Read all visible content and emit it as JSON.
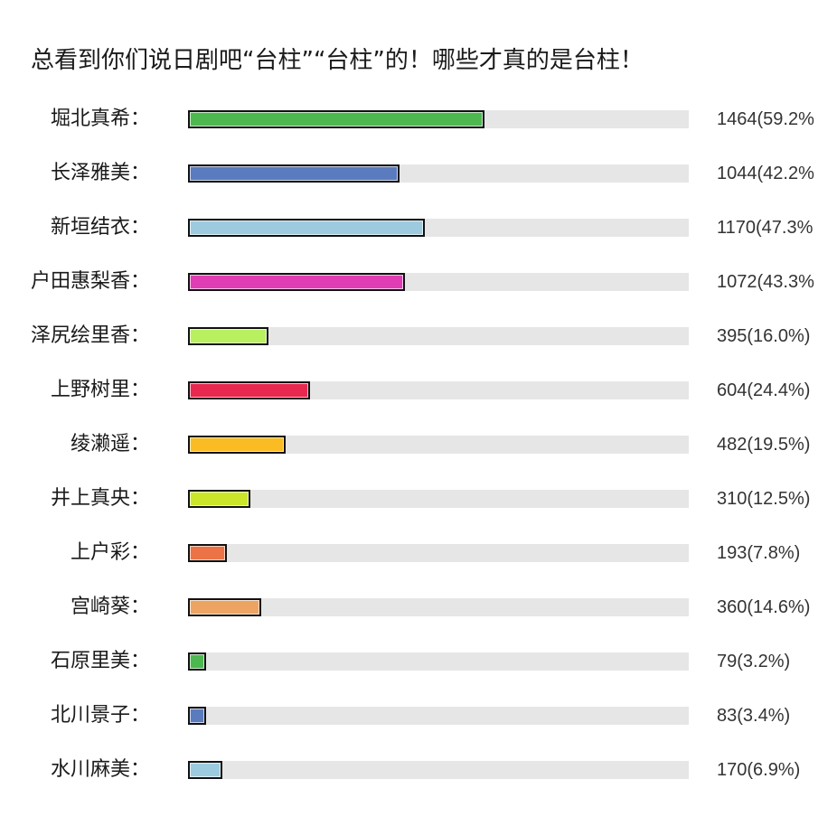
{
  "title": "总看到你们说日剧吧“台柱”“台柱”的！哪些才真的是台柱！",
  "chart_data": {
    "type": "bar",
    "orientation": "horizontal",
    "title": "总看到你们说日剧吧“台柱”“台柱”的！哪些才真的是台柱！",
    "xlabel": "",
    "ylabel": "",
    "xlim": [
      0,
      100
    ],
    "grid": false,
    "legend": null,
    "categories": [
      "堀北真希",
      "长泽雅美",
      "新垣结衣",
      "户田惠梨香",
      "泽尻绘里香",
      "上野树里",
      "绫濑遥",
      "井上真央",
      "上户彩",
      "宫崎葵",
      "石原里美",
      "北川景子",
      "水川麻美"
    ],
    "values": [
      1464,
      1044,
      1170,
      1072,
      395,
      604,
      482,
      310,
      193,
      360,
      79,
      83,
      170
    ],
    "percentages": [
      59.2,
      42.2,
      47.3,
      43.3,
      16.0,
      24.4,
      19.5,
      12.5,
      7.8,
      14.6,
      3.2,
      3.4,
      6.9
    ]
  },
  "rows": [
    {
      "label": "堀北真希：",
      "value_text": "1464(59.2%",
      "pct": 59.2,
      "color": "#4cb84f"
    },
    {
      "label": "长泽雅美：",
      "value_text": "1044(42.2%",
      "pct": 42.2,
      "color": "#5b7bbf"
    },
    {
      "label": "新垣结衣：",
      "value_text": "1170(47.3%",
      "pct": 47.3,
      "color": "#9ccbe0"
    },
    {
      "label": "户田惠梨香：",
      "value_text": "1072(43.3%",
      "pct": 43.3,
      "color": "#e03cb4"
    },
    {
      "label": "泽尻绘里香：",
      "value_text": "395(16.0%)",
      "pct": 16.0,
      "color": "#b8f060"
    },
    {
      "label": "上野树里：",
      "value_text": "604(24.4%)",
      "pct": 24.4,
      "color": "#e8284f"
    },
    {
      "label": "绫濑遥：",
      "value_text": "482(19.5%)",
      "pct": 19.5,
      "color": "#fbbb22"
    },
    {
      "label": "井上真央：",
      "value_text": "310(12.5%)",
      "pct": 12.5,
      "color": "#cbe62a"
    },
    {
      "label": "上户彩：",
      "value_text": "193(7.8%)",
      "pct": 7.8,
      "color": "#ec7346"
    },
    {
      "label": "宫崎葵：",
      "value_text": "360(14.6%)",
      "pct": 14.6,
      "color": "#eda463"
    },
    {
      "label": "石原里美：",
      "value_text": "79(3.2%)",
      "pct": 3.2,
      "color": "#4cb84f"
    },
    {
      "label": "北川景子：",
      "value_text": "83(3.4%)",
      "pct": 3.4,
      "color": "#5b7bbf"
    },
    {
      "label": "水川麻美：",
      "value_text": "170(6.9%)",
      "pct": 6.9,
      "color": "#9ccbe0"
    }
  ]
}
